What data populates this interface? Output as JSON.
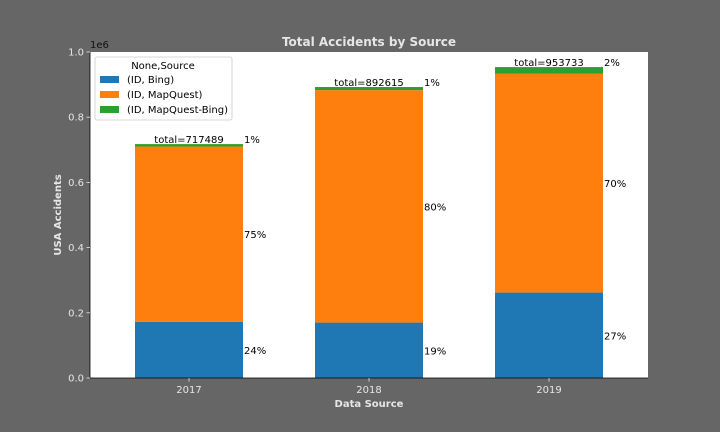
{
  "chart_data": {
    "type": "bar",
    "stacked": true,
    "title": "Total Accidents by Source",
    "xlabel": "Data Source",
    "ylabel": "USA Accidents",
    "y_offset_label": "1e6",
    "ylim": [
      0,
      1000000
    ],
    "yticks": [
      0,
      200000,
      400000,
      600000,
      800000,
      1000000
    ],
    "ytick_labels": [
      "0.0",
      "0.2",
      "0.4",
      "0.6",
      "0.8",
      "1.0"
    ],
    "categories": [
      "2017",
      "2018",
      "2019"
    ],
    "legend": {
      "title": "None,Source",
      "placement": "upper left"
    },
    "series": [
      {
        "name": "(ID, Bing)",
        "color": "#1f77b4",
        "values": [
          172000,
          170000,
          262000
        ],
        "labels": [
          "24%",
          "19%",
          "27%"
        ]
      },
      {
        "name": "(ID, MapQuest)",
        "color": "#ff7f0e",
        "values": [
          538000,
          713000,
          672000
        ],
        "labels": [
          "75%",
          "80%",
          "70%"
        ]
      },
      {
        "name": "(ID, MapQuest-Bing)",
        "color": "#2ca02c",
        "values": [
          7489,
          9615,
          19733
        ],
        "labels": [
          "1%",
          "1%",
          "2%"
        ]
      }
    ],
    "totals": [
      "total=717489",
      "total=892615",
      "total=953733"
    ],
    "totals_values": [
      717489,
      892615,
      953733
    ]
  }
}
